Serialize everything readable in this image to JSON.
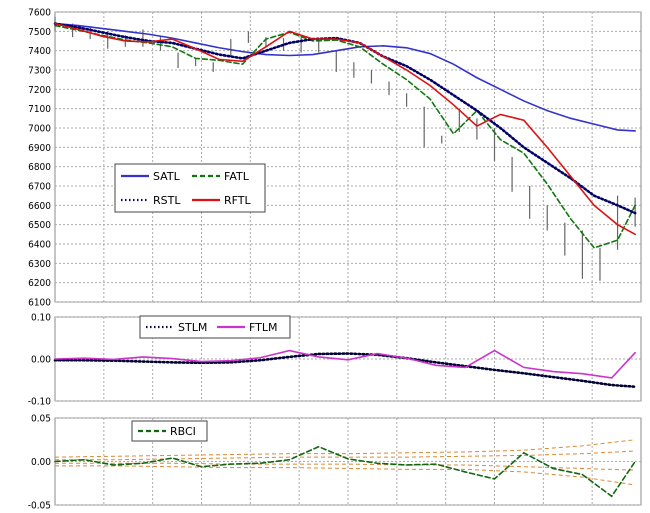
{
  "chart_data": [
    {
      "type": "line",
      "panel": "price",
      "ylim": [
        6100,
        7600
      ],
      "yticks": [
        6100,
        6200,
        6300,
        6400,
        6500,
        6600,
        6700,
        6800,
        6900,
        7000,
        7100,
        7200,
        7300,
        7400,
        7500,
        7600
      ],
      "ytick_labels": [
        "6100",
        "6200",
        "6300",
        "6400",
        "6500",
        "6600",
        "6700",
        "6800",
        "6900",
        "7000",
        "7100",
        "7200",
        "7300",
        "7400",
        "7500",
        "7600"
      ],
      "grid": true,
      "legend": {
        "placement": "middle-left",
        "entries": [
          "SATL",
          "FATL",
          "RSTL",
          "RFTL"
        ]
      },
      "x": [
        0,
        4,
        8,
        12,
        16,
        20,
        24,
        28,
        32,
        36,
        40,
        44,
        48,
        52,
        56,
        60,
        64,
        68,
        72,
        76,
        80,
        84,
        88,
        92,
        96,
        99
      ],
      "series": [
        {
          "name": "SATL",
          "color": "#3333cc",
          "style": "solid",
          "values": [
            7540,
            7530,
            7515,
            7500,
            7485,
            7465,
            7440,
            7415,
            7395,
            7380,
            7375,
            7380,
            7400,
            7420,
            7425,
            7415,
            7385,
            7330,
            7260,
            7200,
            7140,
            7090,
            7050,
            7020,
            6990,
            6985
          ]
        },
        {
          "name": "FATL",
          "color": "#117711",
          "style": "dashed",
          "values": [
            7530,
            7505,
            7480,
            7455,
            7440,
            7420,
            7360,
            7350,
            7330,
            7460,
            7495,
            7450,
            7455,
            7420,
            7330,
            7250,
            7150,
            6970,
            7090,
            6940,
            6870,
            6710,
            6530,
            6380,
            6420,
            6600
          ]
        },
        {
          "name": "RSTL",
          "color": "#000066",
          "style": "dotted",
          "values": [
            7540,
            7520,
            7495,
            7470,
            7450,
            7440,
            7410,
            7380,
            7360,
            7400,
            7440,
            7460,
            7465,
            7440,
            7370,
            7320,
            7250,
            7170,
            7090,
            7000,
            6900,
            6820,
            6740,
            6650,
            6600,
            6560
          ]
        },
        {
          "name": "RFTL",
          "color": "#dd1111",
          "style": "solid",
          "values": [
            7540,
            7510,
            7475,
            7450,
            7445,
            7460,
            7410,
            7355,
            7345,
            7420,
            7500,
            7460,
            7460,
            7440,
            7370,
            7300,
            7220,
            7120,
            7010,
            7070,
            7040,
            6900,
            6750,
            6600,
            6500,
            6450
          ]
        }
      ],
      "bars": {
        "color": "#666666",
        "x": [
          0,
          3,
          6,
          9,
          12,
          15,
          18,
          21,
          24,
          27,
          30,
          33,
          36,
          39,
          42,
          45,
          48,
          51,
          54,
          57,
          60,
          63,
          66,
          69,
          72,
          75,
          78,
          81,
          84,
          87,
          90,
          93,
          96,
          99
        ],
        "high": [
          7575,
          7540,
          7525,
          7500,
          7480,
          7510,
          7475,
          7390,
          7360,
          7340,
          7460,
          7500,
          7470,
          7465,
          7470,
          7455,
          7400,
          7340,
          7300,
          7240,
          7180,
          7110,
          6960,
          7100,
          7050,
          7000,
          6850,
          6700,
          6600,
          6510,
          6470,
          6380,
          6650,
          6640
        ],
        "low": [
          7500,
          7470,
          7460,
          7410,
          7420,
          7420,
          7400,
          7310,
          7320,
          7290,
          7370,
          7440,
          7420,
          7400,
          7390,
          7390,
          7290,
          7260,
          7230,
          7170,
          7110,
          6900,
          6920,
          6980,
          6940,
          6830,
          6670,
          6530,
          6470,
          6340,
          6220,
          6210,
          6370,
          6490
        ]
      }
    },
    {
      "type": "line",
      "panel": "ftlm",
      "ylim": [
        -0.1,
        0.1
      ],
      "yticks": [
        -0.1,
        0,
        0.1
      ],
      "ytick_labels": [
        "-0.10",
        "0.00",
        "0.10"
      ],
      "grid": true,
      "legend": {
        "placement": "top-left",
        "entries": [
          "STLM",
          "FTLM"
        ]
      },
      "x": [
        0,
        5,
        10,
        15,
        20,
        25,
        30,
        35,
        40,
        45,
        50,
        55,
        60,
        65,
        70,
        75,
        80,
        85,
        90,
        95,
        99
      ],
      "series": [
        {
          "name": "STLM",
          "color": "#000033",
          "style": "dotted",
          "values": [
            -0.003,
            -0.003,
            -0.004,
            -0.006,
            -0.008,
            -0.009,
            -0.008,
            -0.003,
            0.005,
            0.012,
            0.013,
            0.01,
            0.002,
            -0.008,
            -0.017,
            -0.026,
            -0.034,
            -0.043,
            -0.052,
            -0.062,
            -0.066
          ]
        },
        {
          "name": "FTLM",
          "color": "#cc33cc",
          "style": "solid",
          "values": [
            0,
            0.002,
            -0.001,
            0.005,
            0.001,
            -0.006,
            -0.004,
            0.003,
            0.02,
            0.005,
            -0.002,
            0.013,
            0.002,
            -0.015,
            -0.02,
            0.02,
            -0.02,
            -0.03,
            -0.035,
            -0.045,
            0.015
          ]
        }
      ]
    },
    {
      "type": "line",
      "panel": "rbci",
      "ylim": [
        -0.05,
        0.05
      ],
      "yticks": [
        -0.05,
        0,
        0.05
      ],
      "ytick_labels": [
        "-0.05",
        "0.00",
        "0.05"
      ],
      "grid": true,
      "legend": {
        "placement": "top-left",
        "entries": [
          "RBCI"
        ]
      },
      "x": [
        0,
        5,
        10,
        15,
        20,
        25,
        30,
        35,
        40,
        45,
        50,
        55,
        60,
        65,
        70,
        75,
        80,
        85,
        90,
        95,
        99
      ],
      "series": [
        {
          "name": "RBCI",
          "color": "#116611",
          "style": "dashed",
          "values": [
            0,
            0.002,
            -0.004,
            -0.002,
            0.004,
            -0.006,
            -0.003,
            -0.002,
            0.002,
            0.017,
            0.003,
            -0.002,
            -0.004,
            -0.003,
            -0.012,
            -0.02,
            0.01,
            -0.008,
            -0.015,
            -0.04,
            0
          ]
        }
      ],
      "bands": {
        "color": "#dd8833",
        "x": [
          0,
          10,
          20,
          30,
          40,
          50,
          60,
          70,
          80,
          90,
          99
        ],
        "lines": [
          [
            0.005,
            0.006,
            0.007,
            0.008,
            0.009,
            0.009,
            0.01,
            0.011,
            0.013,
            0.018,
            0.025
          ],
          [
            0.002,
            0.002,
            0.003,
            0.004,
            0.005,
            0.005,
            0.005,
            0.006,
            0.007,
            0.009,
            0.012
          ],
          [
            -0.002,
            -0.002,
            -0.002,
            -0.003,
            -0.003,
            -0.003,
            -0.004,
            -0.004,
            -0.006,
            -0.008,
            -0.01
          ],
          [
            -0.005,
            -0.005,
            -0.006,
            -0.007,
            -0.007,
            -0.008,
            -0.009,
            -0.009,
            -0.012,
            -0.018,
            -0.027
          ]
        ]
      }
    }
  ]
}
